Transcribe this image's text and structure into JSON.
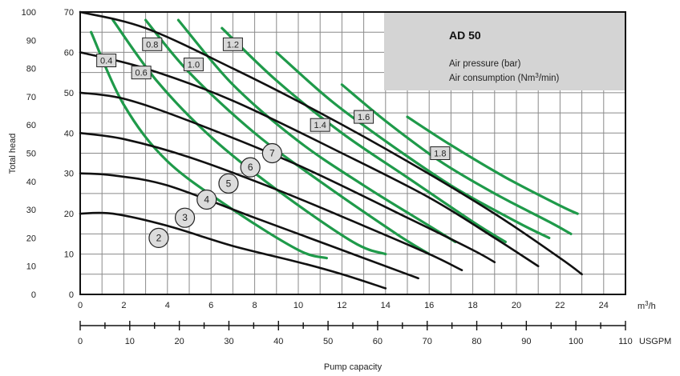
{
  "chart_data": {
    "type": "line",
    "title": "AD 50",
    "legend": {
      "pressure": "Air pressure (bar)",
      "consumption_prefix": "Air consumption (Nm",
      "consumption_sup": "3",
      "consumption_suffix": "/min)"
    },
    "y_left_label": "Total head",
    "x_label": "Pump capacity",
    "x_unit_prefix": "m",
    "x_unit_sup": "3",
    "x_unit_suffix": "/h",
    "x2_unit": "USGPM",
    "xlim": [
      0,
      25
    ],
    "ylim": [
      0,
      70
    ],
    "x2lim": [
      0,
      110
    ],
    "x_ticks": [
      "0",
      "2",
      "4",
      "6",
      "8",
      "10",
      "12",
      "14",
      "16",
      "18",
      "20",
      "22",
      "24"
    ],
    "x2_ticks": [
      "0",
      "10",
      "20",
      "30",
      "40",
      "50",
      "60",
      "70",
      "80",
      "90",
      "100",
      "110"
    ],
    "y_ticks_inner": [
      "0",
      "10",
      "20",
      "30",
      "40",
      "50",
      "60",
      "70"
    ],
    "y_ticks_outer": [
      "0",
      "10",
      "20",
      "30",
      "40",
      "50",
      "60",
      "70",
      "80",
      "90",
      "100"
    ],
    "pressure_curves": [
      {
        "label": "2",
        "label_at": [
          3.6,
          14
        ],
        "points": [
          [
            0,
            20
          ],
          [
            1.5,
            20
          ],
          [
            4,
            17
          ],
          [
            7,
            12
          ],
          [
            10,
            8
          ],
          [
            12,
            5
          ],
          [
            14,
            1.5
          ]
        ]
      },
      {
        "label": "3",
        "label_at": [
          4.8,
          19
        ],
        "points": [
          [
            0,
            30
          ],
          [
            1.5,
            29.5
          ],
          [
            4,
            27
          ],
          [
            8,
            19
          ],
          [
            12,
            11
          ],
          [
            15,
            5
          ],
          [
            15.5,
            4
          ]
        ]
      },
      {
        "label": "4",
        "label_at": [
          5.8,
          23.5
        ],
        "points": [
          [
            0,
            40
          ],
          [
            2,
            38.5
          ],
          [
            5,
            34
          ],
          [
            9,
            26
          ],
          [
            13,
            17
          ],
          [
            16,
            10
          ],
          [
            17.5,
            6
          ]
        ]
      },
      {
        "label": "5",
        "label_at": [
          6.8,
          27.5
        ],
        "points": [
          [
            0,
            50
          ],
          [
            2,
            48.5
          ],
          [
            5,
            43
          ],
          [
            10,
            32
          ],
          [
            15,
            19
          ],
          [
            18,
            11
          ],
          [
            19,
            8
          ]
        ]
      },
      {
        "label": "6",
        "label_at": [
          7.8,
          31.5
        ],
        "points": [
          [
            0,
            60
          ],
          [
            3,
            56
          ],
          [
            7,
            48
          ],
          [
            12,
            35
          ],
          [
            16,
            24
          ],
          [
            19,
            14
          ],
          [
            21,
            7
          ]
        ]
      },
      {
        "label": "7",
        "label_at": [
          8.8,
          35
        ],
        "points": [
          [
            0,
            70
          ],
          [
            3,
            66
          ],
          [
            7,
            56
          ],
          [
            11,
            45
          ],
          [
            15,
            33
          ],
          [
            19,
            20
          ],
          [
            22,
            9
          ],
          [
            23,
            5
          ]
        ]
      }
    ],
    "consumption_curves": [
      {
        "label": "0.4",
        "label_at": [
          1.2,
          58
        ],
        "points": [
          [
            0.5,
            65
          ],
          [
            2,
            47
          ],
          [
            4,
            33
          ],
          [
            7,
            21
          ],
          [
            10,
            11
          ],
          [
            11.3,
            9
          ]
        ]
      },
      {
        "label": "0.6",
        "label_at": [
          2.8,
          55
        ],
        "points": [
          [
            1.5,
            68
          ],
          [
            3.5,
            53
          ],
          [
            6,
            39
          ],
          [
            9,
            26
          ],
          [
            12.5,
            13
          ],
          [
            14,
            10
          ]
        ]
      },
      {
        "label": "0.8",
        "label_at": [
          3.3,
          62
        ],
        "points": [
          [
            3,
            68
          ],
          [
            5,
            55
          ],
          [
            8,
            40
          ],
          [
            11,
            28
          ],
          [
            14.5,
            15
          ],
          [
            16,
            10
          ]
        ]
      },
      {
        "label": "1.0",
        "label_at": [
          5.2,
          57
        ],
        "points": [
          [
            4.5,
            68
          ],
          [
            7,
            52
          ],
          [
            10,
            38
          ],
          [
            13,
            27
          ],
          [
            16,
            17
          ],
          [
            17.2,
            13
          ]
        ]
      },
      {
        "label": "1.2",
        "label_at": [
          7,
          62
        ],
        "points": [
          [
            6.5,
            66
          ],
          [
            9,
            53
          ],
          [
            12,
            40
          ],
          [
            15,
            29
          ],
          [
            18,
            18
          ],
          [
            19.5,
            13
          ]
        ]
      },
      {
        "label": "1.4",
        "label_at": [
          11,
          42
        ],
        "points": [
          [
            9,
            60
          ],
          [
            11.5,
            48
          ],
          [
            14,
            38
          ],
          [
            17,
            27
          ],
          [
            20,
            18
          ],
          [
            21.5,
            14
          ]
        ]
      },
      {
        "label": "1.6",
        "label_at": [
          13,
          44
        ],
        "points": [
          [
            12,
            52
          ],
          [
            14,
            43
          ],
          [
            16.5,
            33
          ],
          [
            19,
            25
          ],
          [
            21.5,
            18
          ],
          [
            22.5,
            15
          ]
        ]
      },
      {
        "label": "1.8",
        "label_at": [
          16.5,
          35
        ],
        "points": [
          [
            15,
            44
          ],
          [
            17,
            37
          ],
          [
            19.5,
            29
          ],
          [
            22,
            22
          ],
          [
            22.8,
            20
          ]
        ]
      }
    ]
  }
}
